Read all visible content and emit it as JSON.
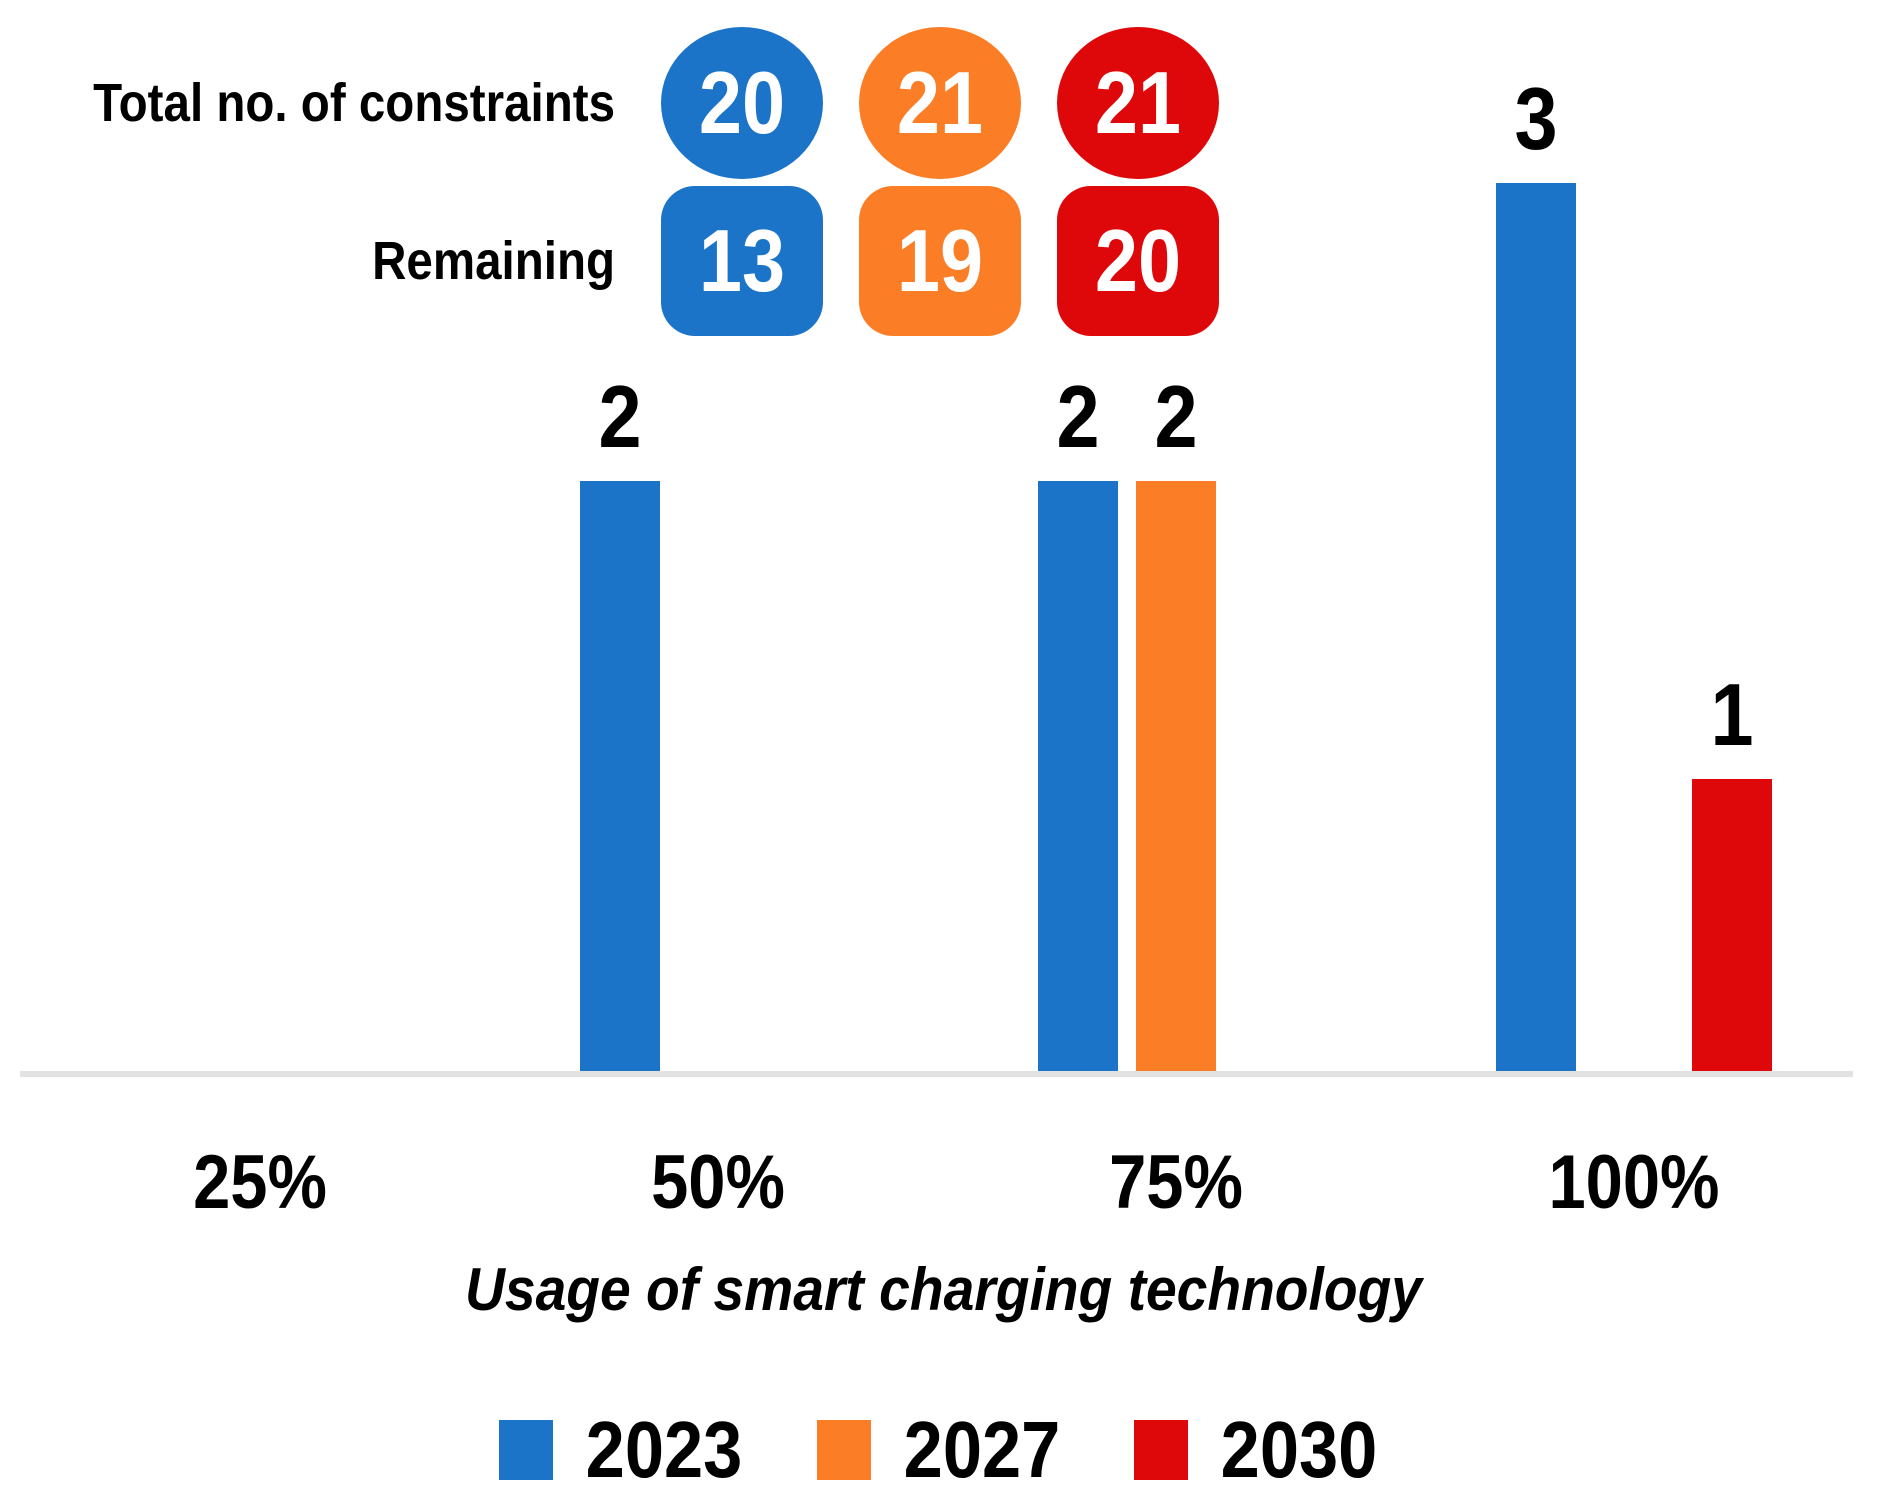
{
  "chart_data": {
    "type": "bar",
    "categories": [
      "25%",
      "50%",
      "75%",
      "100%"
    ],
    "series": [
      {
        "name": "2023",
        "color": "#1B74C8",
        "values": [
          0,
          2,
          2,
          3
        ]
      },
      {
        "name": "2027",
        "color": "#FB7D26",
        "values": [
          0,
          0,
          2,
          0
        ]
      },
      {
        "name": "2030",
        "color": "#DE0709",
        "values": [
          0,
          0,
          0,
          1
        ]
      }
    ],
    "xlabel": "Usage of smart charging technology",
    "ylim": [
      0,
      3
    ],
    "grid": false,
    "legend_position": "bottom",
    "annotations": {
      "rows": [
        {
          "label": "Total no. of constraints",
          "shape": "circle",
          "values": [
            20,
            21,
            21
          ]
        },
        {
          "label": "Remaining",
          "shape": "rounded-square",
          "values": [
            13,
            19,
            20
          ]
        }
      ]
    }
  },
  "colors": {
    "axis_line": "#E2E2E2",
    "background": "#FFFFFF",
    "text": "#000000",
    "badge_text": "#FFFFFF"
  }
}
